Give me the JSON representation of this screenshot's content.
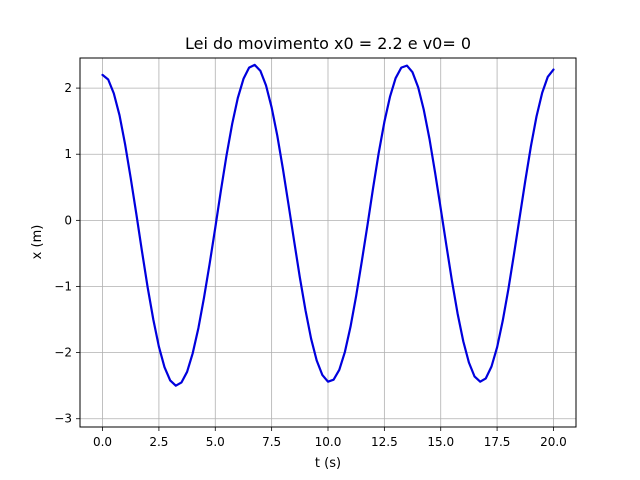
{
  "chart_data": {
    "type": "line",
    "title": "Lei do movimento x0 = 2.2 e v0= 0",
    "xlabel": "t (s)",
    "ylabel": "x (m)",
    "xlim": [
      -1.0,
      21.0
    ],
    "ylim": [
      -3.125,
      2.455
    ],
    "grid": true,
    "x_ticks": [
      0.0,
      2.5,
      5.0,
      7.5,
      10.0,
      12.5,
      15.0,
      17.5,
      20.0
    ],
    "x_tick_labels": [
      "0.0",
      "2.5",
      "5.0",
      "7.5",
      "10.0",
      "12.5",
      "15.0",
      "17.5",
      "20.0"
    ],
    "y_ticks": [
      2,
      1,
      0,
      -1,
      -2,
      -3
    ],
    "y_tick_labels": [
      "2",
      "1",
      "0",
      "−1",
      "−2",
      "−3"
    ],
    "series": [
      {
        "color": "#0000dd",
        "x": [
          0.0,
          0.25,
          0.5,
          0.75,
          1.0,
          1.25,
          1.5,
          1.75,
          2.0,
          2.25,
          2.5,
          2.75,
          3.0,
          3.25,
          3.5,
          3.75,
          4.0,
          4.25,
          4.5,
          4.75,
          5.0,
          5.25,
          5.5,
          5.75,
          6.0,
          6.25,
          6.5,
          6.75,
          7.0,
          7.25,
          7.5,
          7.75,
          8.0,
          8.25,
          8.5,
          8.75,
          9.0,
          9.25,
          9.5,
          9.75,
          10.0,
          10.25,
          10.5,
          10.75,
          11.0,
          11.25,
          11.5,
          11.75,
          12.0,
          12.25,
          12.5,
          12.75,
          13.0,
          13.25,
          13.5,
          13.75,
          14.0,
          14.25,
          14.5,
          14.75,
          15.0,
          15.25,
          15.5,
          15.75,
          16.0,
          16.25,
          16.5,
          16.75,
          17.0,
          17.25,
          17.5,
          17.75,
          18.0,
          18.25,
          18.5,
          18.75,
          19.0,
          19.25,
          19.5,
          19.75,
          20.0
        ],
        "y": [
          2.2,
          2.13,
          1.92,
          1.59,
          1.15,
          0.64,
          0.09,
          -0.47,
          -1.01,
          -1.5,
          -1.91,
          -2.22,
          -2.42,
          -2.5,
          -2.45,
          -2.29,
          -2.01,
          -1.63,
          -1.17,
          -0.66,
          -0.11,
          0.45,
          0.98,
          1.46,
          1.85,
          2.14,
          2.31,
          2.35,
          2.26,
          2.04,
          1.71,
          1.28,
          0.78,
          0.24,
          -0.32,
          -0.86,
          -1.36,
          -1.79,
          -2.12,
          -2.34,
          -2.44,
          -2.41,
          -2.26,
          -1.99,
          -1.61,
          -1.14,
          -0.62,
          -0.07,
          0.49,
          1.02,
          1.49,
          1.87,
          2.15,
          2.31,
          2.34,
          2.24,
          2.01,
          1.67,
          1.23,
          0.72,
          0.18,
          -0.38,
          -0.92,
          -1.41,
          -1.83,
          -2.15,
          -2.36,
          -2.44,
          -2.39,
          -2.21,
          -1.92,
          -1.52,
          -1.04,
          -0.51,
          0.04,
          0.6,
          1.12,
          1.57,
          1.93,
          2.17,
          2.28
        ]
      }
    ]
  }
}
